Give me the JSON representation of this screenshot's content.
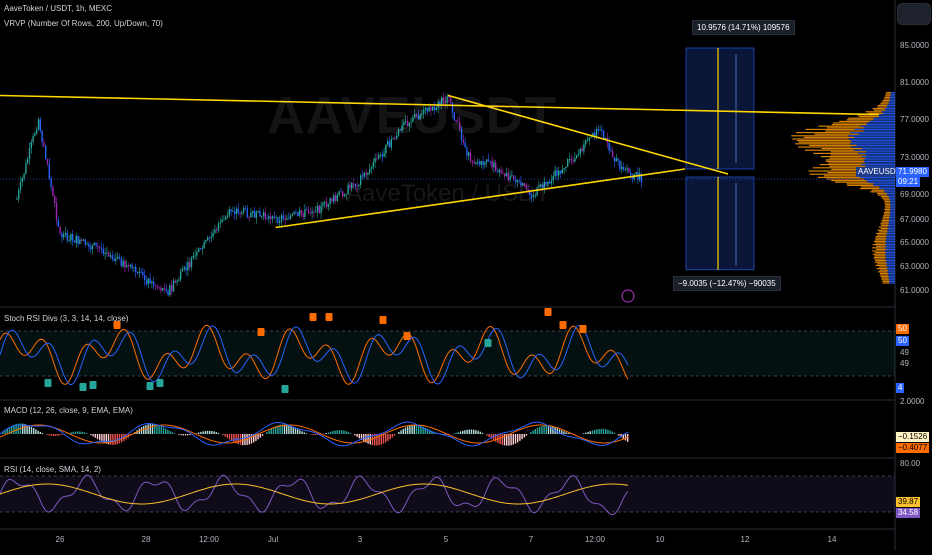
{
  "header": {
    "symbol_title": "AaveToken / USDT, 1h, MEXC",
    "indicator": "VRVP (Number Of Rows, 200, Up/Down, 70)"
  },
  "watermark": {
    "big": "AAVEUSDT",
    "small": "AaveToken / USDT"
  },
  "colors": {
    "up": "#26a69a",
    "down": "#ef5350",
    "candle": "#2962ff",
    "candle_alt": "#9c27b0",
    "trendline": "#ffd600",
    "vp_up": "#ff9800",
    "vp_down": "#2962ff",
    "rsi": "#7e57c2",
    "rsi_ma": "#fbc02d",
    "stoch_k": "#2962ff",
    "stoch_d": "#ff6d00",
    "macd": "#2962ff",
    "signal": "#ff6d00"
  },
  "price_axis": {
    "ticks": [
      "85.0000",
      "81.0000",
      "77.0000",
      "73.0000",
      "69.0000",
      "67.0000",
      "65.0000",
      "63.0000",
      "61.0000"
    ]
  },
  "price_tags": {
    "symbol": "AAVEUSDT",
    "price": "71.9980",
    "countdown": "09:21"
  },
  "measure": {
    "up_label": "10.9576 (14.71%) 109576",
    "down_label": "−9.0035 (−12.47%) −90035"
  },
  "stoch": {
    "title": "Stoch RSI Divs (3, 3, 14, 14, close)",
    "axis": [
      "50",
      "50",
      "49",
      "49",
      "4"
    ],
    "bear_marker": "R",
    "bull_marker": "R"
  },
  "macd": {
    "title": "MACD (12, 26, close, 9, EMA, EMA)",
    "axis_top": "2.0000",
    "macd_val": "−0.1526",
    "signal_val": "−0.4077"
  },
  "rsi": {
    "title": "RSI (14, close, SMA, 14, 2)",
    "axis_top": "80.00",
    "rsi_val": "39.87",
    "ma_val": "34.58"
  },
  "time_axis": {
    "ticks": [
      "26",
      "28",
      "12:00",
      "Jul",
      "3",
      "5",
      "7",
      "12:00",
      "10",
      "12",
      "14"
    ]
  },
  "chart_data": {
    "type": "candlestick",
    "title": "AaveToken / USDT, 1h, MEXC",
    "series": [
      {
        "name": "AAVEUSDT",
        "close_path_keypoints": [
          {
            "x": "25 Jun",
            "y": 70.0
          },
          {
            "x": "25 Jun 12:00",
            "y": 78.0
          },
          {
            "x": "26 Jun",
            "y": 66.5
          },
          {
            "x": "27 Jun",
            "y": 65.0
          },
          {
            "x": "28 Jun",
            "y": 62.0
          },
          {
            "x": "28 Jun 12:00",
            "y": 60.8
          },
          {
            "x": "29 Jun",
            "y": 63.5
          },
          {
            "x": "30 Jun",
            "y": 69.0
          },
          {
            "x": "1 Jul",
            "y": 68.0
          },
          {
            "x": "2 Jul",
            "y": 69.0
          },
          {
            "x": "3 Jul",
            "y": 72.0
          },
          {
            "x": "4 Jul",
            "y": 77.5
          },
          {
            "x": "5 Jul",
            "y": 80.0
          },
          {
            "x": "5 Jul 12:00",
            "y": 74.0
          },
          {
            "x": "6 Jul",
            "y": 73.5
          },
          {
            "x": "7 Jul",
            "y": 70.5
          },
          {
            "x": "8 Jul",
            "y": 74.5
          },
          {
            "x": "8 Jul 12:00",
            "y": 77.0
          },
          {
            "x": "9 Jul",
            "y": 73.0
          },
          {
            "x": "9 Jul 12:00",
            "y": 72.0
          }
        ]
      }
    ],
    "y_axis": {
      "range": [
        60,
        87
      ]
    },
    "x_axis": {
      "range": [
        "24 Jun 12:00",
        "15 Jul 12:00"
      ]
    },
    "trendlines": [
      {
        "name": "horizontal resistance",
        "points": [
          {
            "x": "24 Jun 12:00",
            "y": 80.3
          },
          {
            "x": "15 Jul",
            "y": 78.4
          }
        ]
      },
      {
        "name": "descending",
        "points": [
          {
            "x": "5 Jul",
            "y": 80.3
          },
          {
            "x": "11 Jul 12:00",
            "y": 72.5
          }
        ]
      },
      {
        "name": "ascending",
        "points": [
          {
            "x": "1 Jul",
            "y": 67.2
          },
          {
            "x": "10 Jul 12:00",
            "y": 73.0
          }
        ]
      }
    ],
    "projection": {
      "entry": 73.0,
      "target": 85.0,
      "stop": 63.0
    },
    "legend": "none",
    "grid": false
  }
}
